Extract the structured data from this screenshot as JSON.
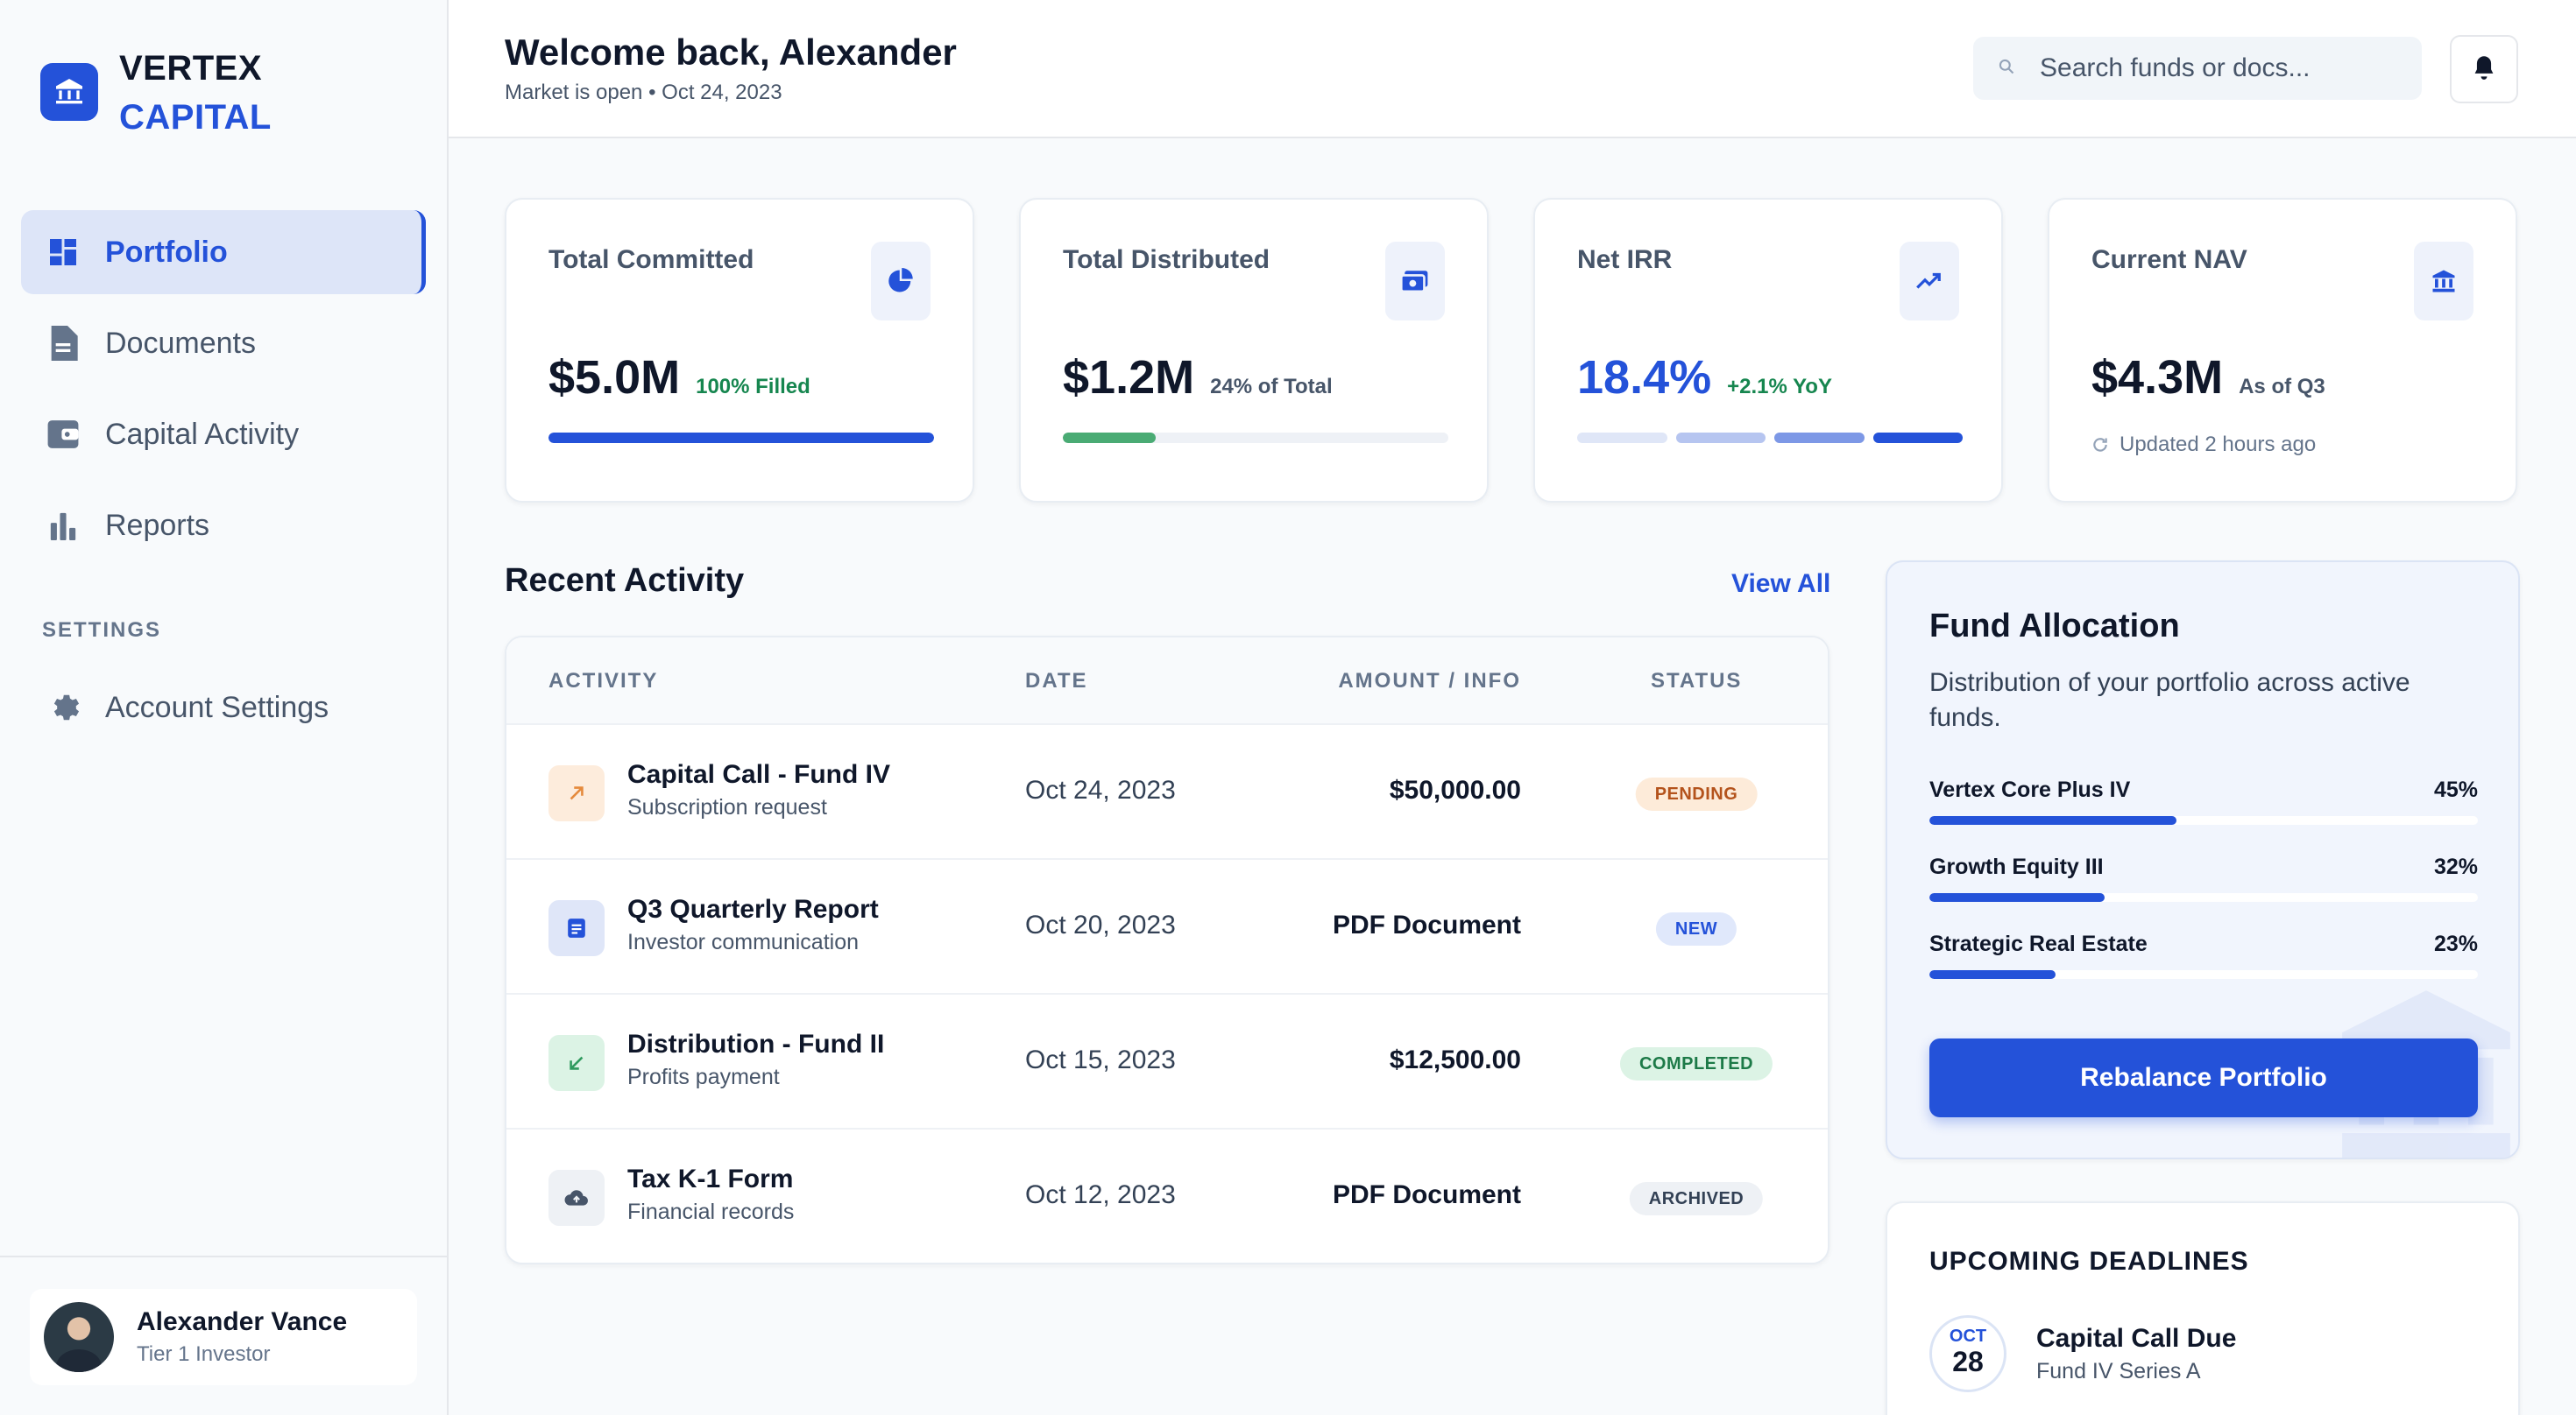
{
  "brand": {
    "line1": "VERTEX",
    "line2": "CAPITAL",
    "color": "#2452d9"
  },
  "sidebar": {
    "items": [
      {
        "label": "Portfolio",
        "icon": "dashboard-icon",
        "active": true
      },
      {
        "label": "Documents",
        "icon": "document-icon"
      },
      {
        "label": "Capital Activity",
        "icon": "wallet-icon"
      },
      {
        "label": "Reports",
        "icon": "bar-chart-icon"
      }
    ],
    "settings_heading": "SETTINGS",
    "settings_items": [
      {
        "label": "Account Settings",
        "icon": "gear-icon"
      }
    ]
  },
  "user": {
    "name": "Alexander Vance",
    "tier": "Tier 1 Investor"
  },
  "header": {
    "welcome": "Welcome back, Alexander",
    "status": "Market is open • Oct 24, 2023",
    "search_placeholder": "Search funds or docs..."
  },
  "stats": [
    {
      "label": "Total Committed",
      "value": "$5.0M",
      "tag": "100% Filled",
      "icon": "pie-chart-icon",
      "progress": 1.0
    },
    {
      "label": "Total Distributed",
      "value": "$1.2M",
      "tag": "24% of Total",
      "icon": "cash-icon",
      "progress": 0.24
    },
    {
      "label": "Net IRR",
      "value": "18.4%",
      "tag": "+2.1% YoY",
      "icon": "trending-up-icon"
    },
    {
      "label": "Current NAV",
      "value": "$4.3M",
      "tag": "As of Q3",
      "icon": "bank-icon",
      "updated": "Updated 2 hours ago"
    }
  ],
  "activity": {
    "title": "Recent Activity",
    "view_all": "View All",
    "columns": [
      "ACTIVITY",
      "DATE",
      "AMOUNT / INFO",
      "STATUS"
    ],
    "rows": [
      {
        "title": "Capital Call - Fund IV",
        "subtitle": "Subscription request",
        "date": "Oct 24, 2023",
        "amount": "$50,000.00",
        "status": "PENDING",
        "icon": "arrow-up-right-icon"
      },
      {
        "title": "Q3 Quarterly Report",
        "subtitle": "Investor communication",
        "date": "Oct 20, 2023",
        "amount": "PDF Document",
        "status": "NEW",
        "icon": "report-icon"
      },
      {
        "title": "Distribution - Fund II",
        "subtitle": "Profits payment",
        "date": "Oct 15, 2023",
        "amount": "$12,500.00",
        "status": "COMPLETED",
        "icon": "arrow-down-left-icon"
      },
      {
        "title": "Tax K-1 Form",
        "subtitle": "Financial records",
        "date": "Oct 12, 2023",
        "amount": "PDF Document",
        "status": "ARCHIVED",
        "icon": "cloud-upload-icon"
      }
    ]
  },
  "allocation": {
    "title": "Fund Allocation",
    "description": "Distribution of your portfolio across active funds.",
    "funds": [
      {
        "name": "Vertex Core Plus IV",
        "percent_label": "45%",
        "percent": 45
      },
      {
        "name": "Growth Equity III",
        "percent_label": "32%",
        "percent": 32
      },
      {
        "name": "Strategic Real Estate",
        "percent_label": "23%",
        "percent": 23
      }
    ],
    "button": "Rebalance Portfolio"
  },
  "deadlines": {
    "title": "UPCOMING DEADLINES",
    "items": [
      {
        "month": "OCT",
        "day": "28",
        "title": "Capital Call Due",
        "subtitle": "Fund IV Series A"
      }
    ]
  }
}
